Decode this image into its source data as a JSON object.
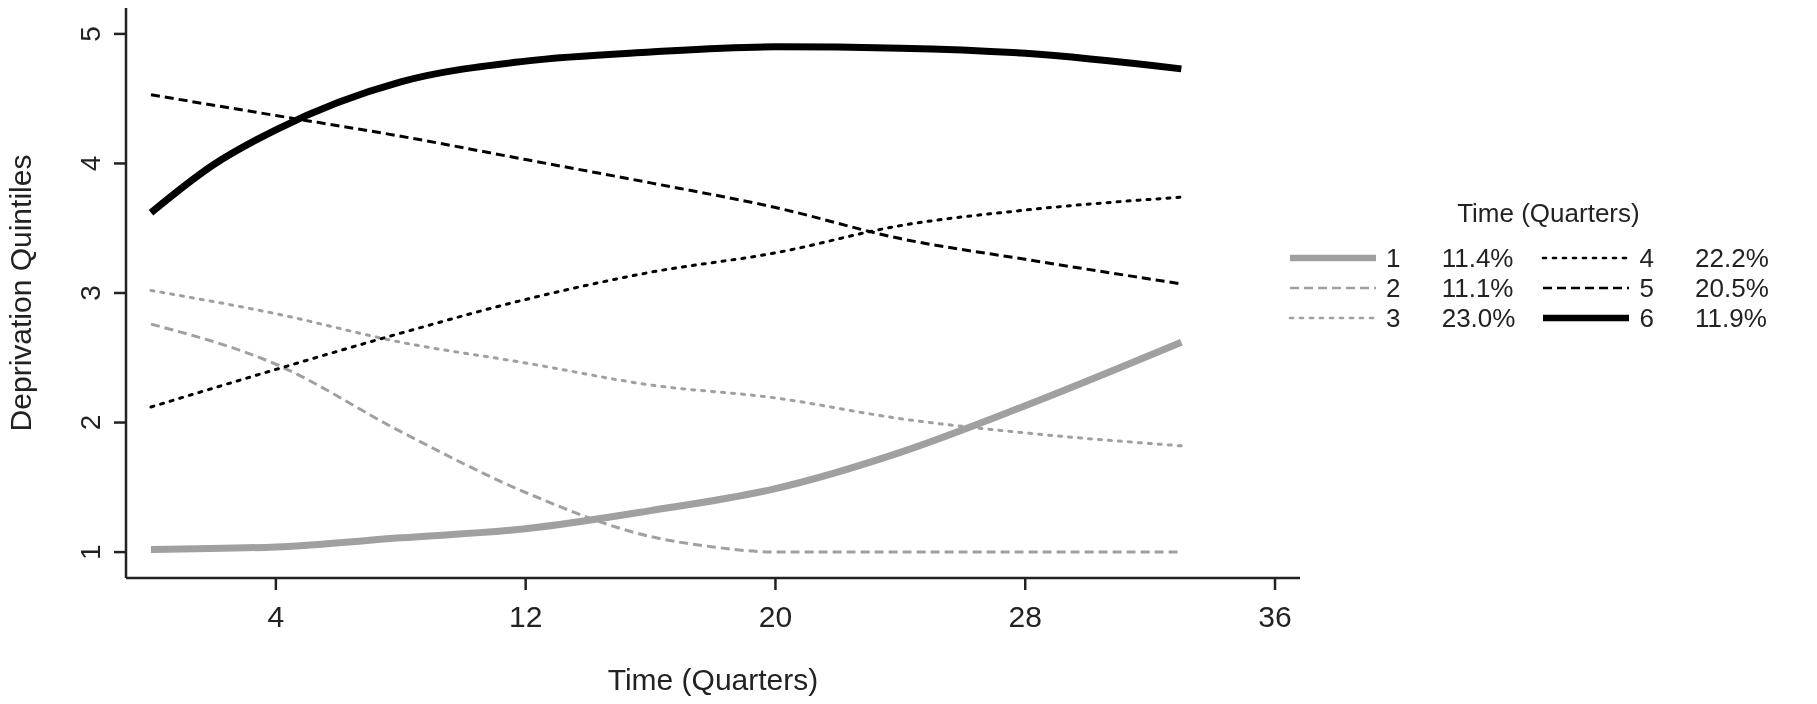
{
  "chart_data": {
    "type": "line",
    "xlabel": "Time (Quarters)",
    "ylabel": "Deprivation Quintiles",
    "legend_title": "Time (Quarters)",
    "x": [
      0,
      4,
      8,
      12,
      16,
      20,
      24,
      28,
      33
    ],
    "xlim": [
      -0.8,
      36.8
    ],
    "xticks": [
      4,
      12,
      20,
      28,
      36
    ],
    "ylim": [
      0.8,
      5.2
    ],
    "yticks": [
      1,
      2,
      3,
      4,
      5
    ],
    "grid": false,
    "legend": "right",
    "marker": "none",
    "series": [
      {
        "name": "1 11.4%",
        "color": "#a0a0a0",
        "line_style": "solid",
        "values": [
          1.02,
          1.04,
          1.11,
          1.18,
          1.32,
          1.49,
          1.77,
          2.13,
          2.62
        ]
      },
      {
        "name": "2 11.1%",
        "color": "#a0a0a0",
        "line_style": "dashed",
        "x": [
          0,
          4,
          8,
          12,
          16,
          18,
          20,
          24,
          28,
          33
        ],
        "values": [
          2.76,
          2.45,
          1.93,
          1.46,
          1.12,
          1.04,
          1.0,
          1.0,
          1.0,
          1.0
        ]
      },
      {
        "name": "3 23.0%",
        "color": "#a0a0a0",
        "line_style": "dotted",
        "values": [
          3.02,
          2.84,
          2.62,
          2.46,
          2.29,
          2.19,
          2.03,
          1.92,
          1.82
        ]
      },
      {
        "name": "4 22.2%",
        "color": "#000000",
        "line_style": "dotted",
        "values": [
          2.12,
          2.41,
          2.69,
          2.95,
          3.16,
          3.31,
          3.52,
          3.64,
          3.74
        ]
      },
      {
        "name": "5 20.5%",
        "color": "#000000",
        "line_style": "dashed",
        "values": [
          4.53,
          4.37,
          4.21,
          4.03,
          3.85,
          3.66,
          3.42,
          3.26,
          3.07
        ]
      },
      {
        "name": "6 11.9%",
        "color": "#000000",
        "line_style": "solid",
        "x": [
          0,
          2,
          4,
          8,
          12,
          16,
          20,
          24,
          28,
          33
        ],
        "values": [
          3.62,
          3.99,
          4.26,
          4.63,
          4.79,
          4.86,
          4.9,
          4.89,
          4.85,
          4.73
        ]
      }
    ]
  }
}
